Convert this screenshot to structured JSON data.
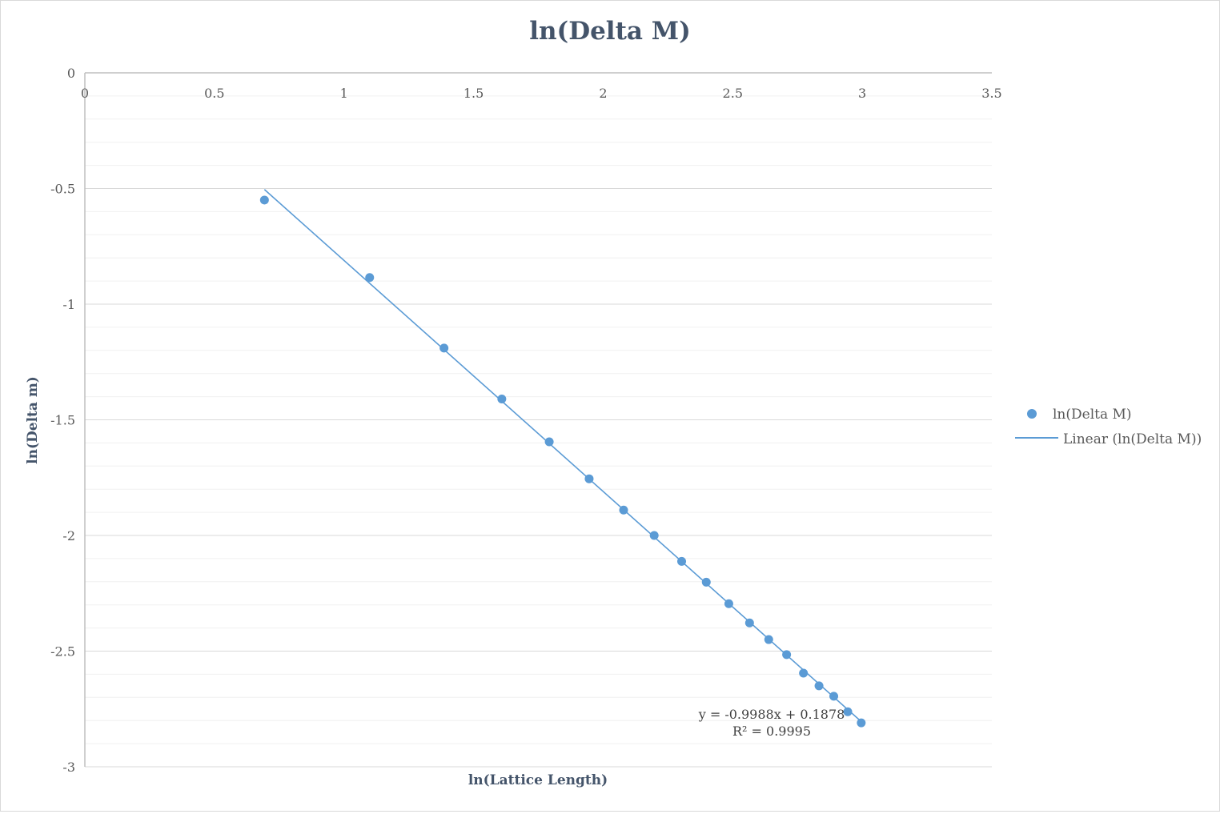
{
  "chart_data": {
    "type": "scatter",
    "title": "ln(Delta M)",
    "xlabel": "ln(Lattice Length)",
    "ylabel": "ln(Delta m)",
    "xlim": [
      0,
      3.5
    ],
    "ylim": [
      -3,
      0
    ],
    "x_ticks": [
      "0",
      "0.5",
      "1",
      "1.5",
      "2",
      "2.5",
      "3",
      "3.5"
    ],
    "y_ticks": [
      "0",
      "-0.5",
      "-1",
      "-1.5",
      "-2",
      "-2.5",
      "-3"
    ],
    "x_axis_position": "top",
    "grid": true,
    "legend_position": "right",
    "series": [
      {
        "name": "ln(Delta M)",
        "color": "#5b9bd5",
        "points": [
          {
            "x": 0.693,
            "y": -0.55
          },
          {
            "x": 1.099,
            "y": -0.885
          },
          {
            "x": 1.386,
            "y": -1.19
          },
          {
            "x": 1.609,
            "y": -1.41
          },
          {
            "x": 1.792,
            "y": -1.595
          },
          {
            "x": 1.946,
            "y": -1.755
          },
          {
            "x": 2.079,
            "y": -1.89
          },
          {
            "x": 2.197,
            "y": -2.0
          },
          {
            "x": 2.303,
            "y": -2.112
          },
          {
            "x": 2.398,
            "y": -2.202
          },
          {
            "x": 2.485,
            "y": -2.295
          },
          {
            "x": 2.565,
            "y": -2.378
          },
          {
            "x": 2.639,
            "y": -2.45
          },
          {
            "x": 2.708,
            "y": -2.515
          },
          {
            "x": 2.773,
            "y": -2.595
          },
          {
            "x": 2.833,
            "y": -2.65
          },
          {
            "x": 2.89,
            "y": -2.695
          },
          {
            "x": 2.944,
            "y": -2.762
          },
          {
            "x": 2.996,
            "y": -2.81
          }
        ]
      }
    ],
    "trendline": {
      "name": "Linear (ln(Delta M))",
      "type": "linear",
      "slope": -0.9988,
      "intercept": 0.1878,
      "x_range": [
        0.693,
        2.996
      ],
      "color": "#5b9bd5",
      "equation": "y = -0.9988x + 0.1878",
      "r_squared": "R² = 0.9995"
    }
  }
}
